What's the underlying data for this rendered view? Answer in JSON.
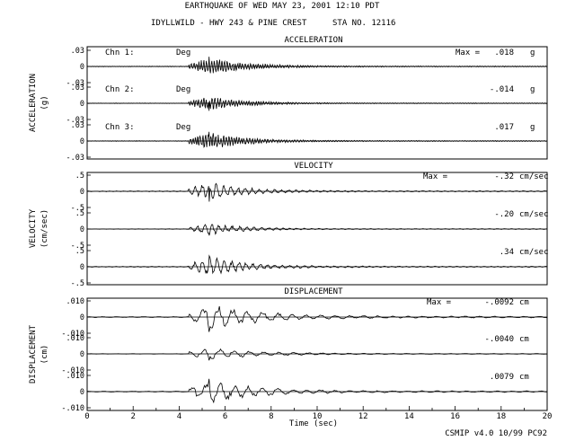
{
  "header": {
    "title": "EARTHQUAKE OF WED MAY 23, 2001  12:10 PDT",
    "station_line": "IDYLLWILD - HWY 243 & PINE CREST",
    "station_number": "STA NO. 12116"
  },
  "footer": {
    "software": "CSMIP v4.0 10/99  PC92"
  },
  "chart_data": {
    "type": "line",
    "xlabel": "Time (sec)",
    "xlim": [
      0,
      20
    ],
    "xticks": [
      "0",
      "2",
      "4",
      "6",
      "8",
      "10",
      "12",
      "14",
      "16",
      "18",
      "20"
    ],
    "panels": [
      {
        "title": "ACCELERATION",
        "ylabel": "ACCELERATION",
        "yunit": "(g)",
        "unit": "g",
        "max_prefix": "Max =",
        "tick_labels": [
          ".03",
          "0",
          "-.03"
        ],
        "ylim": [
          -0.03,
          0.03
        ],
        "series": [
          {
            "name": "Chn 1:",
            "direction": "Deg",
            "peak": 0.018,
            "peak_label": ".018"
          },
          {
            "name": "Chn 2:",
            "direction": "Deg",
            "peak": -0.014,
            "peak_label": "-.014"
          },
          {
            "name": "Chn 3:",
            "direction": "Deg",
            "peak": 0.017,
            "peak_label": ".017"
          }
        ]
      },
      {
        "title": "VELOCITY",
        "ylabel": "VELOCITY",
        "yunit": "(cm/sec)",
        "unit": "cm/sec",
        "max_prefix": "Max =",
        "tick_labels": [
          ".5",
          "0",
          "-.5"
        ],
        "ylim": [
          -0.5,
          0.5
        ],
        "series": [
          {
            "peak": -0.32,
            "peak_label": "-.32"
          },
          {
            "peak": -0.2,
            "peak_label": "-.20"
          },
          {
            "peak": 0.34,
            "peak_label": ".34"
          }
        ]
      },
      {
        "title": "DISPLACEMENT",
        "ylabel": "DISPLACEMENT",
        "yunit": "(cm)",
        "unit": "cm",
        "max_prefix": "Max =",
        "tick_labels": [
          ".010",
          "0",
          "-.010"
        ],
        "ylim": [
          -0.01,
          0.01
        ],
        "series": [
          {
            "peak": -0.0092,
            "peak_label": "-.0092"
          },
          {
            "peak": -0.004,
            "peak_label": "-.0040"
          },
          {
            "peak": 0.0079,
            "peak_label": ".0079"
          }
        ]
      }
    ]
  }
}
